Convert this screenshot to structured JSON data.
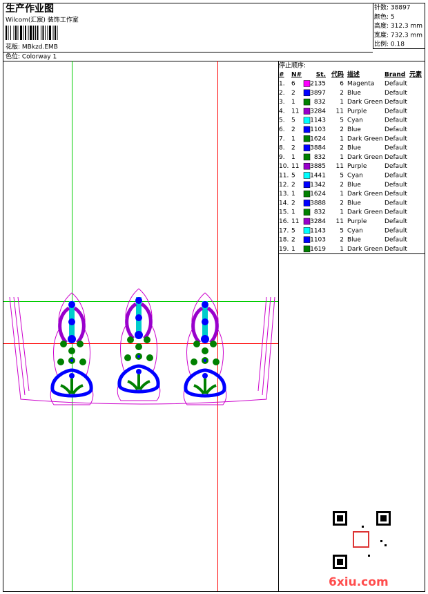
{
  "header": {
    "title": "生产作业图",
    "subtitle": "Wilcom(汇宸) 装饰工作室",
    "design": "花版:  MBkzd.EMB",
    "colorway": "色位:  Colorway 1"
  },
  "info": [
    "针数: 38897",
    "颜色: 5",
    "高度: 312.3 mm",
    "宽度: 732.3 mm",
    "比例: 0.18"
  ],
  "stop_sequence": {
    "title": "停止顺序:",
    "columns": [
      "#",
      "N#",
      "St.",
      "代码",
      "描述",
      "Brand",
      "元素"
    ],
    "rows": [
      {
        "no": "1.",
        "n": 6,
        "st": 2135,
        "code": 6,
        "desc": "Magenta",
        "brand": "Default",
        "color": "#ff00ff"
      },
      {
        "no": "2.",
        "n": 2,
        "st": 3897,
        "code": 2,
        "desc": "Blue",
        "brand": "Default",
        "color": "#0000ff"
      },
      {
        "no": "3.",
        "n": 1,
        "st": 832,
        "code": 1,
        "desc": "Dark Green",
        "brand": "Default",
        "color": "#008000"
      },
      {
        "no": "4.",
        "n": 11,
        "st": 3284,
        "code": 11,
        "desc": "Purple",
        "brand": "Default",
        "color": "#9900cc"
      },
      {
        "no": "5.",
        "n": 5,
        "st": 1143,
        "code": 5,
        "desc": "Cyan",
        "brand": "Default",
        "color": "#00ffff"
      },
      {
        "no": "6.",
        "n": 2,
        "st": 1103,
        "code": 2,
        "desc": "Blue",
        "brand": "Default",
        "color": "#0000ff"
      },
      {
        "no": "7.",
        "n": 1,
        "st": 1624,
        "code": 1,
        "desc": "Dark Green",
        "brand": "Default",
        "color": "#008000"
      },
      {
        "no": "8.",
        "n": 2,
        "st": 3884,
        "code": 2,
        "desc": "Blue",
        "brand": "Default",
        "color": "#0000ff"
      },
      {
        "no": "9.",
        "n": 1,
        "st": 832,
        "code": 1,
        "desc": "Dark Green",
        "brand": "Default",
        "color": "#008000"
      },
      {
        "no": "10.",
        "n": 11,
        "st": 3885,
        "code": 11,
        "desc": "Purple",
        "brand": "Default",
        "color": "#9900cc"
      },
      {
        "no": "11.",
        "n": 5,
        "st": 1441,
        "code": 5,
        "desc": "Cyan",
        "brand": "Default",
        "color": "#00ffff"
      },
      {
        "no": "12.",
        "n": 2,
        "st": 1342,
        "code": 2,
        "desc": "Blue",
        "brand": "Default",
        "color": "#0000ff"
      },
      {
        "no": "13.",
        "n": 1,
        "st": 1624,
        "code": 1,
        "desc": "Dark Green",
        "brand": "Default",
        "color": "#008000"
      },
      {
        "no": "14.",
        "n": 2,
        "st": 3888,
        "code": 2,
        "desc": "Blue",
        "brand": "Default",
        "color": "#0000ff"
      },
      {
        "no": "15.",
        "n": 1,
        "st": 832,
        "code": 1,
        "desc": "Dark Green",
        "brand": "Default",
        "color": "#008000"
      },
      {
        "no": "16.",
        "n": 11,
        "st": 3284,
        "code": 11,
        "desc": "Purple",
        "brand": "Default",
        "color": "#9900cc"
      },
      {
        "no": "17.",
        "n": 5,
        "st": 1143,
        "code": 5,
        "desc": "Cyan",
        "brand": "Default",
        "color": "#00ffff"
      },
      {
        "no": "18.",
        "n": 2,
        "st": 1103,
        "code": 2,
        "desc": "Blue",
        "brand": "Default",
        "color": "#0000ff"
      },
      {
        "no": "19.",
        "n": 1,
        "st": 1619,
        "code": 1,
        "desc": "Dark Green",
        "brand": "Default",
        "color": "#008000"
      }
    ]
  },
  "watermark": "6xiu.com"
}
